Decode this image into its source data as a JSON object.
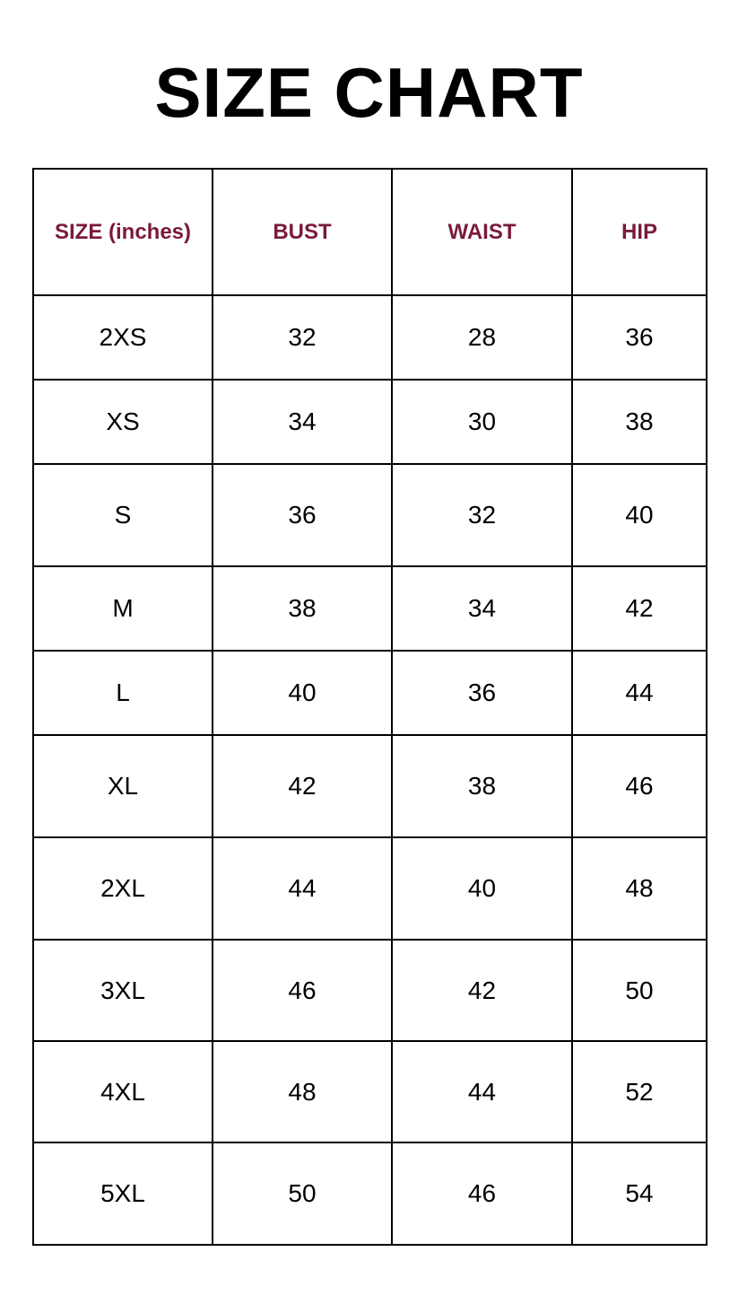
{
  "title": "SIZE CHART",
  "colors": {
    "header_text": "#7a1a3c",
    "text": "#000000",
    "border": "#000000"
  },
  "table": {
    "headers": [
      "SIZE (inches)",
      "BUST",
      "WAIST",
      "HIP"
    ],
    "rows": [
      [
        "2XS",
        "32",
        "28",
        "36"
      ],
      [
        "XS",
        "34",
        "30",
        "38"
      ],
      [
        "S",
        "36",
        "32",
        "40"
      ],
      [
        "M",
        "38",
        "34",
        "42"
      ],
      [
        "L",
        "40",
        "36",
        "44"
      ],
      [
        "XL",
        "42",
        "38",
        "46"
      ],
      [
        "2XL",
        "44",
        "40",
        "48"
      ],
      [
        "3XL",
        "46",
        "42",
        "50"
      ],
      [
        "4XL",
        "48",
        "44",
        "52"
      ],
      [
        "5XL",
        "50",
        "46",
        "54"
      ]
    ]
  }
}
